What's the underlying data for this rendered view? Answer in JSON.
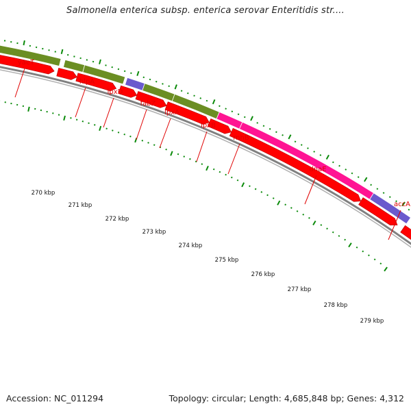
{
  "title": "Salmonella enterica subsp. enterica serovar Enteritidis str....",
  "accession_label": "Accession: NC_011294",
  "summary_label": "Topology: circular; Length: 4,685,848 bp; Genes: 4,312",
  "gene_labels": [
    "yaeT",
    "hlpA",
    "lpxD",
    "fabZ",
    "lpxA",
    "lpxB",
    "rnhB",
    "dnaE",
    "accA"
  ],
  "kbp_labels": [
    "270 kbp",
    "271 kbp",
    "272 kbp",
    "273 kbp",
    "274 kbp",
    "275 kbp",
    "276 kbp",
    "277 kbp",
    "278 kbp",
    "279 kbp"
  ],
  "colors": {
    "olive_gene": "#6b8e23",
    "purple_gene": "#6a5acd",
    "magenta_gene": "#ff1493",
    "grey_gene": "#c8c8c8",
    "cds_red": "#ff0000",
    "tick_green": "#0a8a0a",
    "backbone": "#808080",
    "label_red": "#e00000"
  }
}
